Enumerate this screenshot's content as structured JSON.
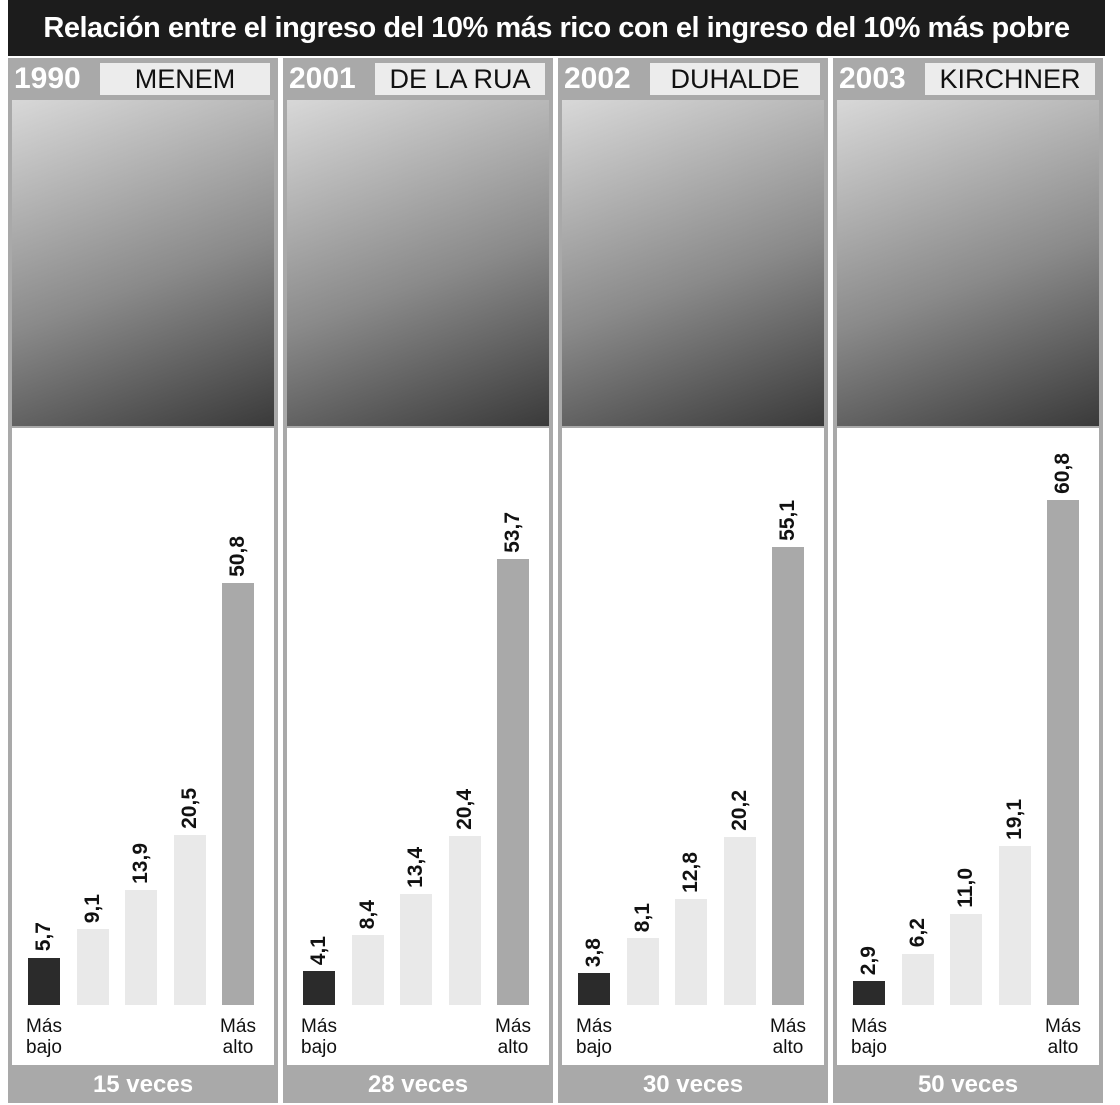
{
  "title": "Relación entre el ingreso del 10% más rico con el ingreso del 10% más pobre",
  "chart_data": [
    {
      "type": "bar",
      "year": "1990",
      "name": "MENEM",
      "categories": [
        "Más bajo",
        null,
        null,
        null,
        "Más alto"
      ],
      "values": [
        5.7,
        9.1,
        13.9,
        20.5,
        50.8
      ],
      "value_labels": [
        "5,7",
        "9,1",
        "13,9",
        "20,5",
        "50,8"
      ],
      "colors": [
        "#2b2b2b",
        "#e9e9e9",
        "#e9e9e9",
        "#e9e9e9",
        "#a9a9a9"
      ],
      "footer": "15 veces"
    },
    {
      "type": "bar",
      "year": "2001",
      "name": "DE LA RUA",
      "categories": [
        "Más bajo",
        null,
        null,
        null,
        "Más alto"
      ],
      "values": [
        4.1,
        8.4,
        13.4,
        20.4,
        53.7
      ],
      "value_labels": [
        "4,1",
        "8,4",
        "13,4",
        "20,4",
        "53,7"
      ],
      "colors": [
        "#2b2b2b",
        "#e9e9e9",
        "#e9e9e9",
        "#e9e9e9",
        "#a9a9a9"
      ],
      "footer": "28 veces"
    },
    {
      "type": "bar",
      "year": "2002",
      "name": "DUHALDE",
      "categories": [
        "Más bajo",
        null,
        null,
        null,
        "Más alto"
      ],
      "values": [
        3.8,
        8.1,
        12.8,
        20.2,
        55.1
      ],
      "value_labels": [
        "3,8",
        "8,1",
        "12,8",
        "20,2",
        "55,1"
      ],
      "colors": [
        "#2b2b2b",
        "#e9e9e9",
        "#e9e9e9",
        "#e9e9e9",
        "#a9a9a9"
      ],
      "footer": "30 veces"
    },
    {
      "type": "bar",
      "year": "2003",
      "name": "KIRCHNER",
      "categories": [
        "Más bajo",
        null,
        null,
        null,
        "Más alto"
      ],
      "values": [
        2.9,
        6.2,
        11.0,
        19.1,
        60.8
      ],
      "value_labels": [
        "2,9",
        "6,2",
        "11,0",
        "19,1",
        "60,8"
      ],
      "colors": [
        "#2b2b2b",
        "#e9e9e9",
        "#e9e9e9",
        "#e9e9e9",
        "#a9a9a9"
      ],
      "footer": "50 veces"
    }
  ]
}
